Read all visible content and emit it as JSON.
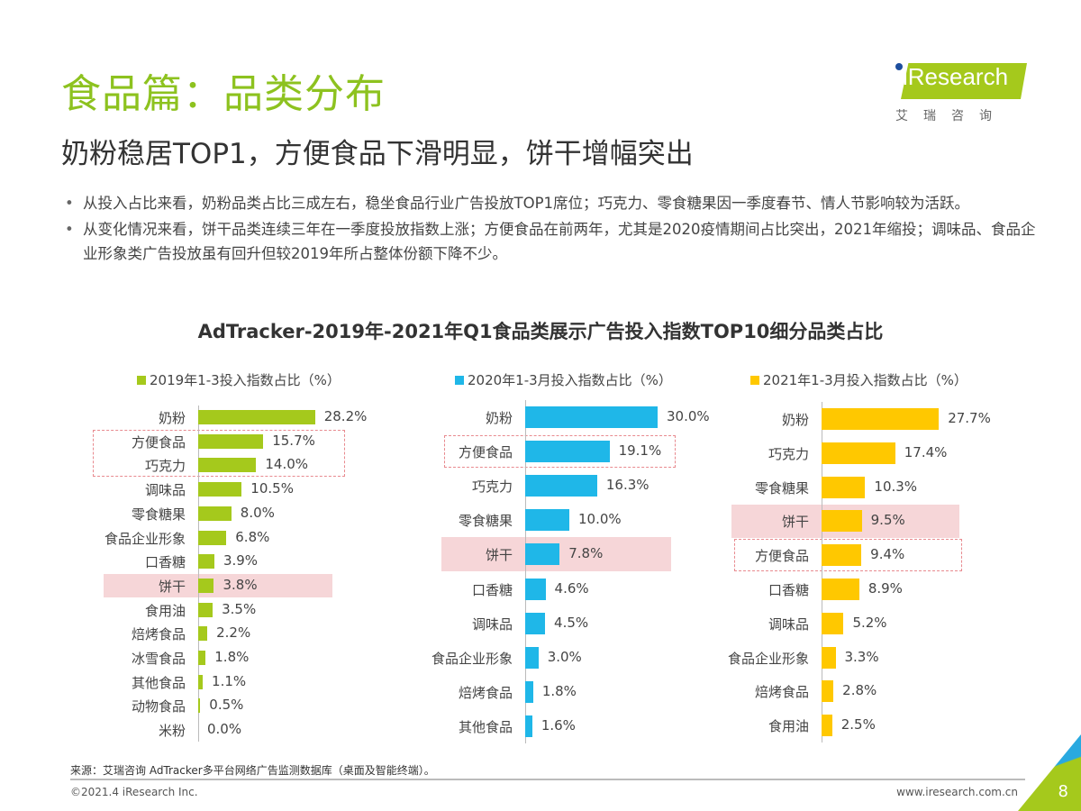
{
  "header": {
    "title": "食品篇：品类分布",
    "subtitle": "奶粉稳居TOP1，方便食品下滑明显，饼干增幅突出"
  },
  "logo": {
    "text": "iResearch",
    "cn": "艾瑞咨询"
  },
  "bullets": [
    "从投入占比来看，奶粉品类占比三成左右，稳坐食品行业广告投放TOP1席位；巧克力、零食糖果因一季度春节、情人节影响较为活跃。",
    "从变化情况来看，饼干品类连续三年在一季度投放指数上涨；方便食品在前两年，尤其是2020疫情期间占比突出，2021年缩投；调味品、食品企业形象类广告投放虽有回升但较2019年所占整体份额下降不少。"
  ],
  "chart_title": "AdTracker-2019年-2021年Q1食品类展示广告投入指数TOP10细分品类占比",
  "chart_data": [
    {
      "type": "bar",
      "orientation": "horizontal",
      "legend": "2019年1-3投入指数占比（%）",
      "color": "#a5c91c",
      "categories": [
        "奶粉",
        "方便食品",
        "巧克力",
        "调味品",
        "零食糖果",
        "食品企业形象",
        "口香糖",
        "饼干",
        "食用油",
        "焙烤食品",
        "冰雪食品",
        "其他食品",
        "动物食品",
        "米粉"
      ],
      "values": [
        28.2,
        15.7,
        14.0,
        10.5,
        8.0,
        6.8,
        3.9,
        3.8,
        3.5,
        2.2,
        1.8,
        1.1,
        0.5,
        0.0
      ],
      "labels": [
        "28.2%",
        "15.7%",
        "14.0%",
        "10.5%",
        "8.0%",
        "6.8%",
        "3.9%",
        "3.8%",
        "3.5%",
        "2.2%",
        "1.8%",
        "1.1%",
        "0.5%",
        "0.0%"
      ],
      "highlight_fill": [
        "饼干"
      ],
      "highlight_dashed": [
        "方便食品",
        "巧克力"
      ]
    },
    {
      "type": "bar",
      "orientation": "horizontal",
      "legend": "2020年1-3月投入指数占比（%）",
      "color": "#1fb7e8",
      "categories": [
        "奶粉",
        "方便食品",
        "巧克力",
        "零食糖果",
        "饼干",
        "口香糖",
        "调味品",
        "食品企业形象",
        "焙烤食品",
        "其他食品"
      ],
      "values": [
        30.0,
        19.1,
        16.3,
        10.0,
        7.8,
        4.6,
        4.5,
        3.0,
        1.8,
        1.6
      ],
      "labels": [
        "30.0%",
        "19.1%",
        "16.3%",
        "10.0%",
        "7.8%",
        "4.6%",
        "4.5%",
        "3.0%",
        "1.8%",
        "1.6%"
      ],
      "highlight_fill": [
        "饼干"
      ],
      "highlight_dashed": [
        "方便食品"
      ]
    },
    {
      "type": "bar",
      "orientation": "horizontal",
      "legend": "2021年1-3月投入指数占比（%）",
      "color": "#ffc800",
      "categories": [
        "奶粉",
        "巧克力",
        "零食糖果",
        "饼干",
        "方便食品",
        "口香糖",
        "调味品",
        "食品企业形象",
        "焙烤食品",
        "食用油"
      ],
      "values": [
        27.7,
        17.4,
        10.3,
        9.5,
        9.4,
        8.9,
        5.2,
        3.3,
        2.8,
        2.5
      ],
      "labels": [
        "27.7%",
        "17.4%",
        "10.3%",
        "9.5%",
        "9.4%",
        "8.9%",
        "5.2%",
        "3.3%",
        "2.8%",
        "2.5%"
      ],
      "highlight_fill": [
        "饼干"
      ],
      "highlight_dashed": [
        "方便食品"
      ]
    }
  ],
  "footer": {
    "source": "来源：艾瑞咨询 AdTracker多平台网络广告监测数据库（桌面及智能终端）。",
    "copyright": "©2021.4 iResearch Inc.",
    "url": "www.iresearch.com.cn",
    "page": "8"
  }
}
